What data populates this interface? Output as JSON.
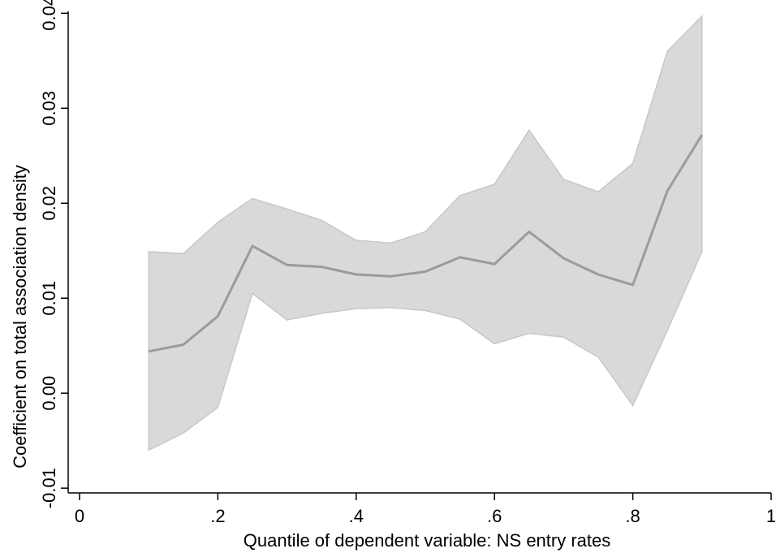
{
  "chart_data": {
    "type": "line",
    "xlabel": "Quantile of dependent variable: NS entry rates",
    "ylabel": "Coefficient on total association density",
    "xlim": [
      0,
      1
    ],
    "ylim": [
      -0.0105,
      0.0402
    ],
    "x_ticks": [
      0,
      0.2,
      0.4,
      0.6,
      0.8,
      1
    ],
    "x_tick_labels": [
      "0",
      ".2",
      ".4",
      ".6",
      ".8",
      "1"
    ],
    "y_ticks": [
      -0.01,
      0.0,
      0.01,
      0.02,
      0.03,
      0.04
    ],
    "y_tick_labels": [
      "-0.01",
      "0.00",
      "0.01",
      "0.02",
      "0.03",
      "0.04"
    ],
    "grid": false,
    "legend": "none",
    "colors": {
      "line": "#9b9b9b",
      "band": "#d9d9d9",
      "band_edge": "#c8c8c8",
      "axis": "#000000"
    },
    "x": [
      0.1,
      0.15,
      0.2,
      0.25,
      0.3,
      0.35,
      0.4,
      0.45,
      0.5,
      0.55,
      0.6,
      0.65,
      0.7,
      0.75,
      0.8,
      0.85,
      0.9
    ],
    "series": [
      {
        "role": "estimate",
        "values": [
          0.0044,
          0.0051,
          0.0081,
          0.0155,
          0.0135,
          0.0133,
          0.0125,
          0.0123,
          0.0128,
          0.0143,
          0.0136,
          0.017,
          0.0142,
          0.0125,
          0.0114,
          0.0213,
          0.0272
        ]
      },
      {
        "role": "upper_ci",
        "values": [
          0.0149,
          0.0147,
          0.018,
          0.0205,
          0.0194,
          0.0182,
          0.0161,
          0.0158,
          0.017,
          0.0208,
          0.022,
          0.0277,
          0.0225,
          0.0212,
          0.0242,
          0.036,
          0.0397
        ]
      },
      {
        "role": "lower_ci",
        "values": [
          -0.006,
          -0.0042,
          -0.0015,
          0.0105,
          0.0077,
          0.0084,
          0.0089,
          0.009,
          0.0087,
          0.0078,
          0.0052,
          0.0063,
          0.0059,
          0.0038,
          -0.0013,
          0.0066,
          0.0149
        ]
      }
    ]
  }
}
